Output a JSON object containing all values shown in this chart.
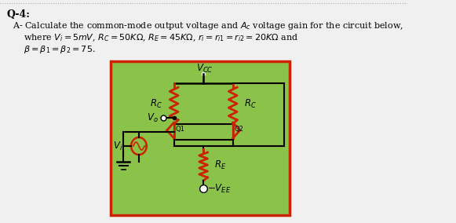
{
  "bg_color": "#f0f0f0",
  "circuit_bg": "#8bc34a",
  "circuit_border": "#cc2200",
  "resistor_color": "#cc2200",
  "title": "Q-4:",
  "line1": "A- Calculate the common-mode output voltage and $A_c$ voltage gain for the circuit below,",
  "line2": "    where $V_i = 5mV$, $R_C = 50K\\Omega$, $R_E = 45K\\Omega$, $r_i = r_{i1} = r_{i2} = 20K\\Omega$ and",
  "line3": "    $\\beta = \\beta_1 = \\beta_2 = 75$.",
  "vcc_label": "$V_{CC}$",
  "rc_label": "$R_C$",
  "re_label": "$R_E$",
  "vee_label": "$-V_{EE}$",
  "vo_label": "$V_o$",
  "vi_label": "$V_i$",
  "q1_label": "Q1",
  "q2_label": "Q2"
}
